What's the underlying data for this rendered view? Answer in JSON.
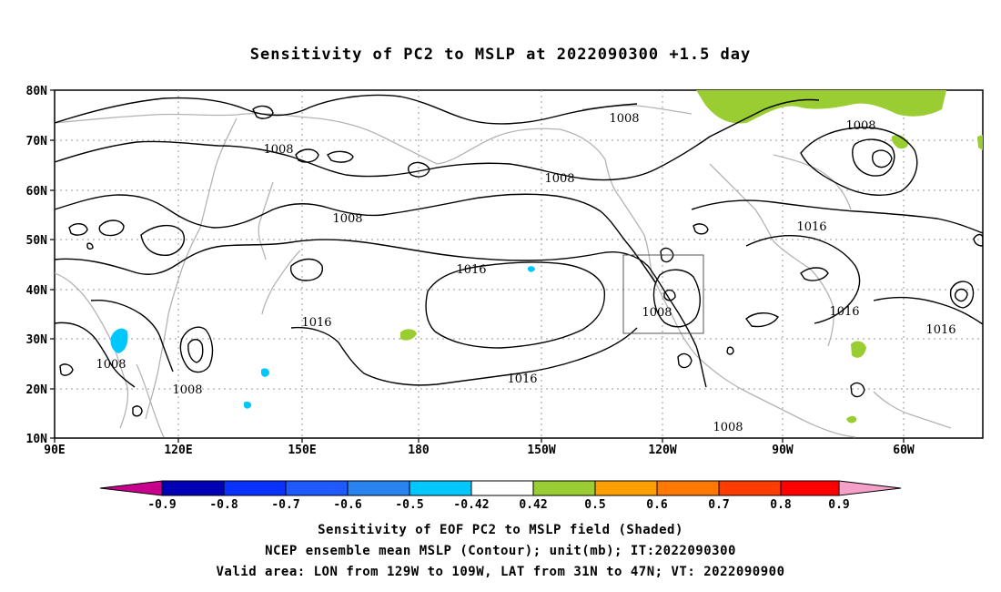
{
  "title": "Sensitivity of PC2 to MSLP at 2022090300 +1.5 day",
  "map": {
    "lon_labels": [
      "90E",
      "120E",
      "150E",
      "180",
      "150W",
      "120W",
      "90W",
      "60W"
    ],
    "lat_labels": [
      "80N",
      "70N",
      "60N",
      "50N",
      "40N",
      "30N",
      "20N",
      "10N"
    ],
    "contour_labels": [
      "1008",
      "1008",
      "1008",
      "1008",
      "1008",
      "1008",
      "1008",
      "1016",
      "1016",
      "1016",
      "1016",
      "1016",
      "1016",
      "1008",
      "1008"
    ],
    "valid_area": {
      "lon_from": "129W",
      "lon_to": "109W",
      "lat_from": "31N",
      "lat_to": "47N"
    },
    "land_color": "#b4b4b4",
    "contour_color": "#000000"
  },
  "colorbar": {
    "labels": [
      "-0.9",
      "-0.8",
      "-0.7",
      "-0.6",
      "-0.5",
      "-0.42",
      "0.42",
      "0.5",
      "0.6",
      "0.7",
      "0.8",
      "0.9"
    ],
    "colors": [
      "#c8008c",
      "#0000b4",
      "#0a32ff",
      "#1e5aff",
      "#2882f0",
      "#00c8ff",
      "#ffffff",
      "#9acd32",
      "#ffa000",
      "#ff7800",
      "#ff3c00",
      "#ff0000",
      "#f5a0c8"
    ]
  },
  "captions": {
    "line1": "Sensitivity of EOF PC2 to MSLP field (Shaded)",
    "line2": "NCEP ensemble mean MSLP (Contour); unit(mb); IT:2022090300",
    "line3": "Valid area: LON from 129W to 109W, LAT from 31N to 47N; VT: 2022090900"
  }
}
